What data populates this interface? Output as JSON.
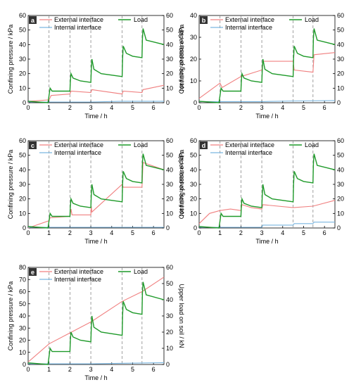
{
  "colors": {
    "external": "#f08080",
    "internal": "#7ab6e0",
    "load": "#1f9a2a",
    "axis": "#000000",
    "guide": "#888888"
  },
  "shared": {
    "xlabel": "Time / h",
    "ylabel_left": "Confining pressure / kPa",
    "ylabel_right": "Upper load on soil / kN",
    "legend": {
      "external": "External interface",
      "internal": "Internal interface",
      "load": "Load"
    },
    "x_ticks": [
      "0",
      "1",
      "2",
      "3",
      "4",
      "5",
      "6"
    ],
    "y_ticks_left_60": [
      "0",
      "10",
      "20",
      "30",
      "40",
      "50",
      "60"
    ],
    "y_ticks_left_80": [
      "0",
      "10",
      "20",
      "30",
      "40",
      "50",
      "60",
      "70",
      "80"
    ],
    "y_ticks_right": [
      "0",
      "10",
      "20",
      "30",
      "40",
      "50",
      "60"
    ]
  },
  "chart_data": [
    {
      "panel": "a",
      "type": "line",
      "xlim": [
        0,
        6.5
      ],
      "ylim_left": [
        0,
        60
      ],
      "ylim_right": [
        0,
        60
      ],
      "step_times": [
        1,
        2,
        3,
        4.5,
        5.45
      ],
      "series": [
        {
          "name": "External interface",
          "axis": "left",
          "points": [
            [
              0,
              0
            ],
            [
              0.05,
              1
            ],
            [
              1,
              2
            ],
            [
              1.1,
              5
            ],
            [
              2,
              6
            ],
            [
              2.05,
              8
            ],
            [
              3,
              7
            ],
            [
              3.05,
              9
            ],
            [
              4.5,
              6
            ],
            [
              4.55,
              8
            ],
            [
              5.45,
              7
            ],
            [
              5.5,
              9
            ],
            [
              6.5,
              12
            ]
          ]
        },
        {
          "name": "Internal interface",
          "axis": "left",
          "points": [
            [
              0,
              0.5
            ],
            [
              1,
              0.5
            ],
            [
              2,
              0.5
            ],
            [
              3,
              0.5
            ],
            [
              4.5,
              1
            ],
            [
              5.45,
              1
            ],
            [
              6.5,
              1
            ]
          ]
        },
        {
          "name": "Load",
          "axis": "right",
          "points": [
            [
              0,
              1
            ],
            [
              0.95,
              0
            ],
            [
              1,
              5
            ],
            [
              1.05,
              10
            ],
            [
              1.15,
              8
            ],
            [
              2,
              8
            ],
            [
              2.02,
              15
            ],
            [
              2.05,
              20
            ],
            [
              2.15,
              17
            ],
            [
              2.5,
              15
            ],
            [
              3,
              14
            ],
            [
              3.02,
              22
            ],
            [
              3.05,
              30
            ],
            [
              3.15,
              23
            ],
            [
              3.5,
              20
            ],
            [
              4.5,
              18
            ],
            [
              4.52,
              30
            ],
            [
              4.55,
              39
            ],
            [
              4.7,
              34
            ],
            [
              5,
              32
            ],
            [
              5.45,
              31
            ],
            [
              5.47,
              44
            ],
            [
              5.5,
              51
            ],
            [
              5.65,
              43
            ],
            [
              6.5,
              40
            ]
          ]
        }
      ]
    },
    {
      "panel": "b",
      "type": "line",
      "xlim": [
        0,
        6.5
      ],
      "ylim_left": [
        0,
        40
      ],
      "ylim_right": [
        0,
        60
      ],
      "step_times": [
        1,
        2,
        3,
        4.5,
        5.45
      ],
      "series": [
        {
          "name": "External interface",
          "axis": "left",
          "points": [
            [
              0,
              2
            ],
            [
              1,
              9
            ],
            [
              1.1,
              7
            ],
            [
              2,
              12
            ],
            [
              3,
              15
            ],
            [
              3.05,
              19
            ],
            [
              4.5,
              19
            ],
            [
              4.55,
              15
            ],
            [
              5.45,
              14
            ],
            [
              5.5,
              22
            ],
            [
              6.5,
              23
            ]
          ]
        },
        {
          "name": "Internal interface",
          "axis": "left",
          "points": [
            [
              0,
              0.5
            ],
            [
              1,
              0.5
            ],
            [
              3,
              0.5
            ],
            [
              4.5,
              0.8
            ],
            [
              6.5,
              1
            ]
          ]
        },
        {
          "name": "Load",
          "axis": "right",
          "points": [
            [
              0,
              1
            ],
            [
              0.95,
              0
            ],
            [
              1,
              5
            ],
            [
              1.05,
              10
            ],
            [
              1.15,
              8
            ],
            [
              2,
              8
            ],
            [
              2.02,
              15
            ],
            [
              2.05,
              20
            ],
            [
              2.15,
              17
            ],
            [
              2.5,
              15
            ],
            [
              3,
              14
            ],
            [
              3.02,
              22
            ],
            [
              3.05,
              30
            ],
            [
              3.15,
              23
            ],
            [
              3.5,
              20
            ],
            [
              4.5,
              18
            ],
            [
              4.52,
              30
            ],
            [
              4.55,
              39
            ],
            [
              4.7,
              34
            ],
            [
              5,
              32
            ],
            [
              5.45,
              31
            ],
            [
              5.47,
              44
            ],
            [
              5.5,
              51
            ],
            [
              5.65,
              43
            ],
            [
              6.5,
              40
            ]
          ]
        }
      ]
    },
    {
      "panel": "c",
      "type": "line",
      "xlim": [
        0,
        6.5
      ],
      "ylim_left": [
        0,
        60
      ],
      "ylim_right": [
        0,
        60
      ],
      "step_times": [
        1,
        2,
        3,
        4.5,
        5.45
      ],
      "series": [
        {
          "name": "External interface",
          "axis": "left",
          "points": [
            [
              0,
              0
            ],
            [
              1,
              5
            ],
            [
              1.05,
              7
            ],
            [
              2,
              8
            ],
            [
              2.05,
              13
            ],
            [
              2.1,
              9
            ],
            [
              3,
              9
            ],
            [
              3.02,
              15
            ],
            [
              3.05,
              11
            ],
            [
              4.5,
              30
            ],
            [
              4.55,
              28
            ],
            [
              5.45,
              28
            ],
            [
              5.5,
              45
            ],
            [
              6.5,
              40
            ]
          ]
        },
        {
          "name": "Internal interface",
          "axis": "left",
          "points": [
            [
              0,
              0.5
            ],
            [
              1,
              0.5
            ],
            [
              3,
              0.5
            ],
            [
              4.5,
              0.5
            ],
            [
              6.5,
              0.5
            ]
          ]
        },
        {
          "name": "Load",
          "axis": "right",
          "points": [
            [
              0,
              1
            ],
            [
              0.95,
              0
            ],
            [
              1,
              5
            ],
            [
              1.05,
              10
            ],
            [
              1.15,
              8
            ],
            [
              2,
              8
            ],
            [
              2.02,
              15
            ],
            [
              2.05,
              20
            ],
            [
              2.15,
              17
            ],
            [
              2.5,
              15
            ],
            [
              3,
              14
            ],
            [
              3.02,
              22
            ],
            [
              3.05,
              30
            ],
            [
              3.15,
              23
            ],
            [
              3.5,
              20
            ],
            [
              4.5,
              18
            ],
            [
              4.52,
              30
            ],
            [
              4.55,
              39
            ],
            [
              4.7,
              34
            ],
            [
              5,
              32
            ],
            [
              5.45,
              31
            ],
            [
              5.47,
              44
            ],
            [
              5.5,
              51
            ],
            [
              5.65,
              43
            ],
            [
              6.5,
              40
            ]
          ]
        }
      ]
    },
    {
      "panel": "d",
      "type": "line",
      "xlim": [
        0,
        6.5
      ],
      "ylim_left": [
        0,
        60
      ],
      "ylim_right": [
        0,
        60
      ],
      "step_times": [
        1,
        2,
        3,
        4.5,
        5.45
      ],
      "series": [
        {
          "name": "External interface",
          "axis": "left",
          "points": [
            [
              0,
              3
            ],
            [
              0.5,
              10
            ],
            [
              1,
              12
            ],
            [
              1.5,
              13
            ],
            [
              2,
              12
            ],
            [
              2.05,
              16
            ],
            [
              2.5,
              14
            ],
            [
              3,
              13
            ],
            [
              3.05,
              16
            ],
            [
              4.5,
              14
            ],
            [
              5.45,
              15
            ],
            [
              6.5,
              19
            ]
          ]
        },
        {
          "name": "Internal interface",
          "axis": "left",
          "points": [
            [
              0,
              0.5
            ],
            [
              3,
              0.5
            ],
            [
              3.05,
              2
            ],
            [
              4.5,
              2
            ],
            [
              4.55,
              3
            ],
            [
              5.45,
              3
            ],
            [
              5.5,
              4
            ],
            [
              6.5,
              4
            ]
          ]
        },
        {
          "name": "Load",
          "axis": "right",
          "points": [
            [
              0,
              1
            ],
            [
              0.95,
              0
            ],
            [
              1,
              5
            ],
            [
              1.05,
              10
            ],
            [
              1.15,
              8
            ],
            [
              2,
              8
            ],
            [
              2.02,
              15
            ],
            [
              2.05,
              20
            ],
            [
              2.15,
              17
            ],
            [
              2.5,
              15
            ],
            [
              3,
              14
            ],
            [
              3.02,
              22
            ],
            [
              3.05,
              30
            ],
            [
              3.15,
              23
            ],
            [
              3.5,
              20
            ],
            [
              4.5,
              18
            ],
            [
              4.52,
              30
            ],
            [
              4.55,
              39
            ],
            [
              4.7,
              34
            ],
            [
              5,
              32
            ],
            [
              5.45,
              31
            ],
            [
              5.47,
              44
            ],
            [
              5.5,
              51
            ],
            [
              5.65,
              43
            ],
            [
              6.5,
              40
            ]
          ]
        }
      ]
    },
    {
      "panel": "e",
      "type": "line",
      "xlim": [
        0,
        6.5
      ],
      "ylim_left": [
        0,
        80
      ],
      "ylim_right": [
        0,
        60
      ],
      "step_times": [
        1,
        2,
        3,
        4.5,
        5.45
      ],
      "series": [
        {
          "name": "External interface",
          "axis": "left",
          "points": [
            [
              0,
              2
            ],
            [
              1,
              17
            ],
            [
              2,
              26
            ],
            [
              3,
              35
            ],
            [
              4.5,
              52
            ],
            [
              5.45,
              60
            ],
            [
              6.5,
              72
            ]
          ]
        },
        {
          "name": "Internal interface",
          "axis": "left",
          "points": [
            [
              0,
              0.5
            ],
            [
              3,
              0.5
            ],
            [
              4.5,
              1
            ],
            [
              6.5,
              1.5
            ]
          ]
        },
        {
          "name": "Load",
          "axis": "right",
          "points": [
            [
              0,
              1
            ],
            [
              0.95,
              0
            ],
            [
              1,
              5
            ],
            [
              1.05,
              10
            ],
            [
              1.15,
              8
            ],
            [
              2,
              8
            ],
            [
              2.02,
              15
            ],
            [
              2.05,
              20
            ],
            [
              2.15,
              17
            ],
            [
              2.5,
              15
            ],
            [
              3,
              14
            ],
            [
              3.02,
              22
            ],
            [
              3.05,
              30
            ],
            [
              3.15,
              23
            ],
            [
              3.5,
              20
            ],
            [
              4.5,
              18
            ],
            [
              4.52,
              30
            ],
            [
              4.55,
              39
            ],
            [
              4.7,
              34
            ],
            [
              5,
              32
            ],
            [
              5.45,
              31
            ],
            [
              5.47,
              44
            ],
            [
              5.5,
              51
            ],
            [
              5.65,
              43
            ],
            [
              6.5,
              40
            ]
          ]
        }
      ]
    }
  ]
}
